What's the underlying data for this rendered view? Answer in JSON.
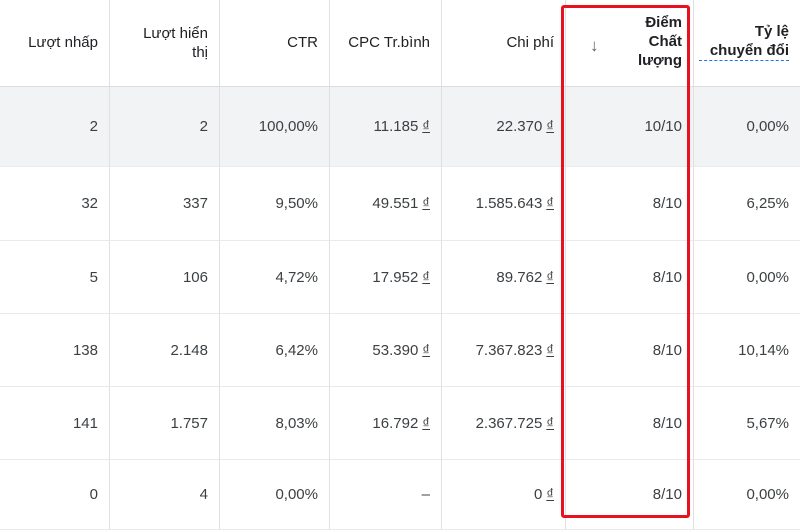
{
  "table": {
    "headers": [
      {
        "label": "Lượt nhấp"
      },
      {
        "label": "Lượt hiển thị"
      },
      {
        "label": "CTR"
      },
      {
        "label": "CPC Tr.bình"
      },
      {
        "label": "Chi phí"
      },
      {
        "label": "Điểm Chất lượng",
        "sorted": "descending"
      },
      {
        "label": "Tỷ lệ chuyển đổi"
      }
    ],
    "sort_icon": "arrow-down-icon",
    "currency_symbol": "₫",
    "rows": [
      {
        "clicks": "2",
        "impressions": "2",
        "ctr": "100,00%",
        "cpc": "11.185",
        "cost": "22.370",
        "quality": "10/10",
        "conv_rate": "0,00%"
      },
      {
        "clicks": "32",
        "impressions": "337",
        "ctr": "9,50%",
        "cpc": "49.551",
        "cost": "1.585.643",
        "quality": "8/10",
        "conv_rate": "6,25%"
      },
      {
        "clicks": "5",
        "impressions": "106",
        "ctr": "4,72%",
        "cpc": "17.952",
        "cost": "89.762",
        "quality": "8/10",
        "conv_rate": "0,00%"
      },
      {
        "clicks": "138",
        "impressions": "2.148",
        "ctr": "6,42%",
        "cpc": "53.390",
        "cost": "7.367.823",
        "quality": "8/10",
        "conv_rate": "10,14%"
      },
      {
        "clicks": "141",
        "impressions": "1.757",
        "ctr": "8,03%",
        "cpc": "16.792",
        "cost": "2.367.725",
        "quality": "8/10",
        "conv_rate": "5,67%"
      },
      {
        "clicks": "0",
        "impressions": "4",
        "ctr": "0,00%",
        "cpc": "–",
        "cost": "0",
        "quality": "8/10",
        "conv_rate": "0,00%"
      }
    ]
  },
  "colors": {
    "highlight": "#e8121e",
    "row_shade": "#f1f3f4",
    "link": "#1a73e8"
  }
}
